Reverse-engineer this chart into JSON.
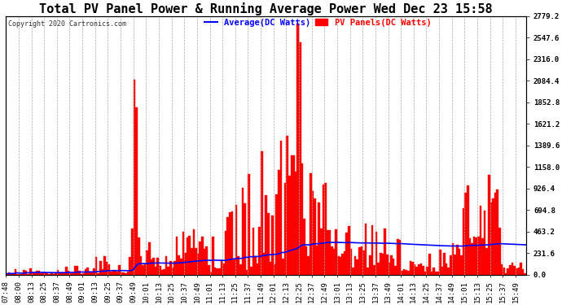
{
  "title": "Total PV Panel Power & Running Average Power Wed Dec 23 15:58",
  "copyright": "Copyright 2020 Cartronics.com",
  "legend_avg": "Average(DC Watts)",
  "legend_pv": "PV Panels(DC Watts)",
  "ymin": 0.0,
  "ymax": 2779.2,
  "yticks": [
    0.0,
    231.6,
    463.2,
    694.8,
    926.4,
    1158.0,
    1389.6,
    1621.2,
    1852.8,
    2084.4,
    2316.0,
    2547.6,
    2779.2
  ],
  "background_color": "#ffffff",
  "grid_color": "#aaaaaa",
  "pv_color": "#ff0000",
  "avg_color": "#0000ff",
  "title_fontsize": 11,
  "tick_fontsize": 6.5,
  "xtick_labels": [
    "07:48",
    "08:00",
    "08:13",
    "08:25",
    "08:37",
    "08:49",
    "09:01",
    "09:13",
    "09:25",
    "09:37",
    "09:49",
    "10:01",
    "10:13",
    "10:25",
    "10:37",
    "10:49",
    "11:01",
    "11:13",
    "11:25",
    "11:37",
    "11:49",
    "12:01",
    "12:13",
    "12:25",
    "12:37",
    "12:49",
    "13:01",
    "13:13",
    "13:25",
    "13:37",
    "13:49",
    "14:01",
    "14:13",
    "14:25",
    "14:37",
    "14:49",
    "15:01",
    "15:13",
    "15:25",
    "15:37",
    "15:49"
  ],
  "n_xticks": 41,
  "pts_per_tick": 6
}
